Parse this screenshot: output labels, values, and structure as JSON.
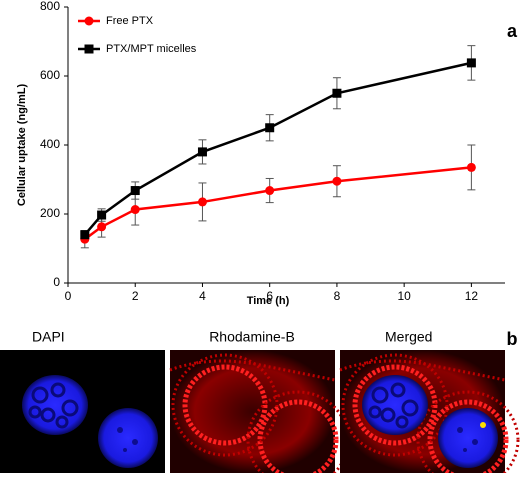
{
  "chart_data": {
    "type": "line",
    "xlabel": "Time (h)",
    "ylabel": "Cellular uptake (ng/mL)",
    "x": [
      0.5,
      1,
      2,
      4,
      6,
      8,
      12
    ],
    "series": [
      {
        "name": "Free PTX",
        "color": "#ff0000",
        "marker": "circle",
        "values": [
          127,
          163,
          213,
          235,
          268,
          295,
          335
        ],
        "errors": [
          25,
          30,
          45,
          55,
          35,
          45,
          65
        ]
      },
      {
        "name": "PTX/MPT micelles",
        "color": "#000000",
        "marker": "square",
        "values": [
          140,
          197,
          268,
          380,
          450,
          550,
          638
        ],
        "errors": [
          10,
          18,
          25,
          35,
          38,
          45,
          50
        ]
      }
    ],
    "xlim": [
      0,
      13
    ],
    "xticks": [
      0,
      2,
      4,
      6,
      8,
      10,
      12
    ],
    "ylim": [
      0,
      800
    ],
    "yticks": [
      0,
      200,
      400,
      600,
      800
    ],
    "legend": "upper left",
    "grid": false
  },
  "panel_labels": [
    "a",
    "b"
  ],
  "images": [
    {
      "label": "DAPI"
    },
    {
      "label": "Rhodamine-B"
    },
    {
      "label": "Merged"
    }
  ]
}
